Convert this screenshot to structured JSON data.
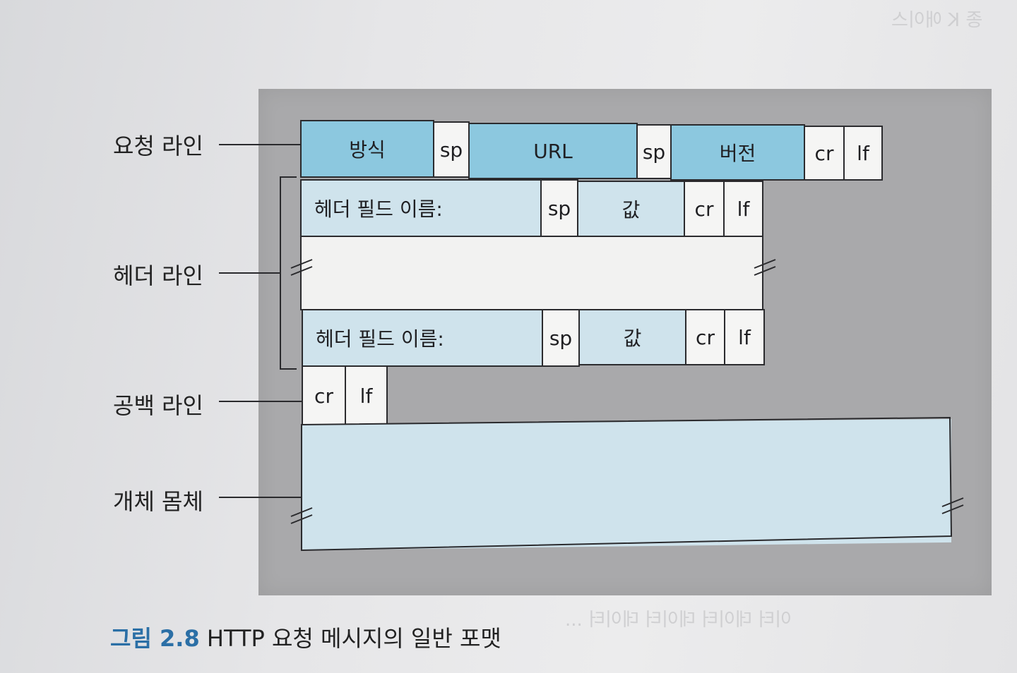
{
  "labels": {
    "request_line": "요청 라인",
    "header_lines": "헤더 라인",
    "blank_line": "공백 라인",
    "entity_body": "개체 몸체"
  },
  "request_line": {
    "method": "방식",
    "sp1": "sp",
    "url": "URL",
    "sp2": "sp",
    "version": "버전",
    "cr": "cr",
    "lf": "lf"
  },
  "header_line_1": {
    "field_name": "헤더 필드 이름:",
    "sp": "sp",
    "value": "값",
    "cr": "cr",
    "lf": "lf"
  },
  "header_line_2": {
    "field_name": "헤더 필드 이름:",
    "sp": "sp",
    "value": "값",
    "cr": "cr",
    "lf": "lf"
  },
  "blank_line": {
    "cr": "cr",
    "lf": "lf"
  },
  "caption": {
    "number": "그림 2.8",
    "text": "HTTP 요청 메시지의 일반 포맷"
  },
  "colors": {
    "request_fill": "#8cc8df",
    "header_fill": "#cfe3ec",
    "panel": "#a9a9ab",
    "caption_number": "#2b6fa6"
  }
}
